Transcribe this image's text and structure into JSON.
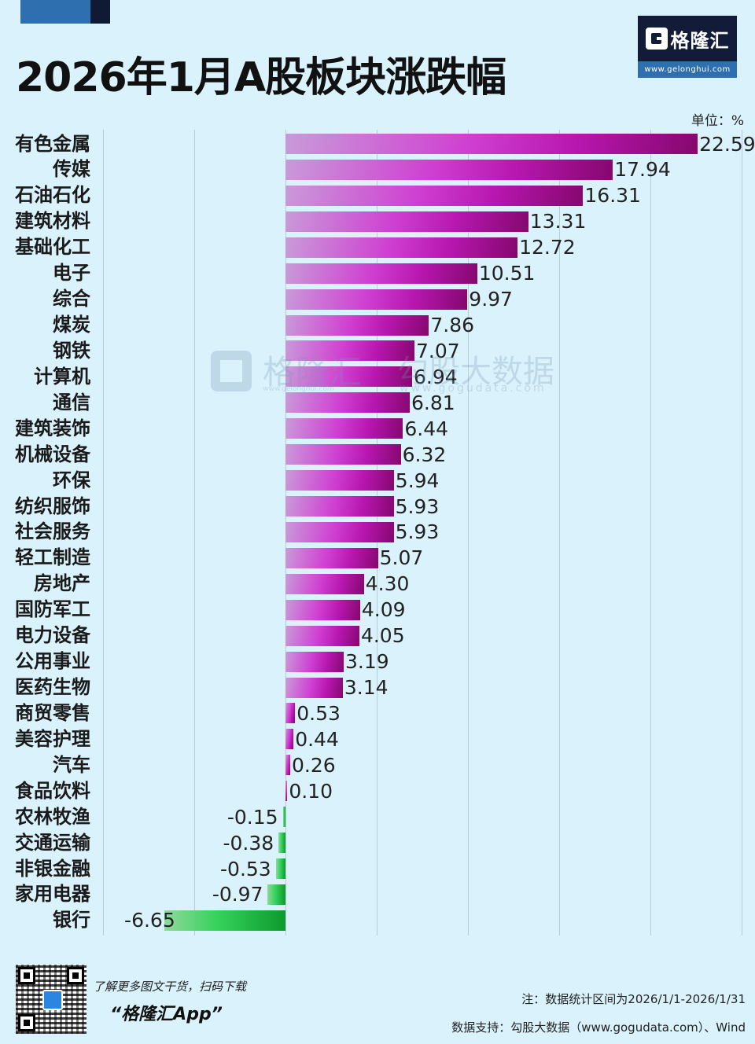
{
  "header": {
    "title": "2026年1月A股板块涨跌幅",
    "logo_name": "格隆汇",
    "logo_url": "www.gelonghui.com",
    "unit": "单位：%"
  },
  "watermark": {
    "brand1": "格隆汇",
    "brand1_url": "www.gelonghui.com",
    "brand2": "勾股大数据",
    "brand2_url": "www.gogudata.com"
  },
  "footer": {
    "promo_line1": "了解更多图文干货，扫码下载",
    "promo_line2": "“格隆汇App”",
    "note": "注：数据统计区间为2026/1/1-2026/1/31",
    "source": "数据支持：勾股大数据（www.gogudata.com）、Wind"
  },
  "colors": {
    "background": "#daf2fc",
    "positive_bar": "#b817b0",
    "negative_bar": "#22c24a",
    "brand_navy": "#121c38",
    "brand_blue": "#2e6fb0"
  },
  "chart_data": {
    "type": "bar",
    "orientation": "horizontal",
    "title": "2026年1月A股板块涨跌幅",
    "xlabel": "",
    "ylabel": "",
    "unit": "%",
    "xlim": [
      -10,
      25
    ],
    "grid": true,
    "grid_step": 5,
    "categories": [
      "有色金属",
      "传媒",
      "石油石化",
      "建筑材料",
      "基础化工",
      "电子",
      "综合",
      "煤炭",
      "钢铁",
      "计算机",
      "通信",
      "建筑装饰",
      "机械设备",
      "环保",
      "纺织服饰",
      "社会服务",
      "轻工制造",
      "房地产",
      "国防军工",
      "电力设备",
      "公用事业",
      "医药生物",
      "商贸零售",
      "美容护理",
      "汽车",
      "食品饮料",
      "农林牧渔",
      "交通运输",
      "非银金融",
      "家用电器",
      "银行"
    ],
    "values": [
      22.59,
      17.94,
      16.31,
      13.31,
      12.72,
      10.51,
      9.97,
      7.86,
      7.07,
      6.94,
      6.81,
      6.44,
      6.32,
      5.94,
      5.93,
      5.93,
      5.07,
      4.3,
      4.09,
      4.05,
      3.19,
      3.14,
      0.53,
      0.44,
      0.26,
      0.1,
      -0.15,
      -0.38,
      -0.53,
      -0.97,
      -6.65
    ],
    "value_labels": [
      "22.59",
      "17.94",
      "16.31",
      "13.31",
      "12.72",
      "10.51",
      "9.97",
      "7.86",
      "7.07",
      "6.94",
      "6.81",
      "6.44",
      "6.32",
      "5.94",
      "5.93",
      "5.93",
      "5.07",
      "4.30",
      "4.09",
      "4.05",
      "3.19",
      "3.14",
      "0.53",
      "0.44",
      "0.26",
      "0.10",
      "-0.15",
      "-0.38",
      "-0.53",
      "-0.97",
      "-6.65"
    ]
  }
}
